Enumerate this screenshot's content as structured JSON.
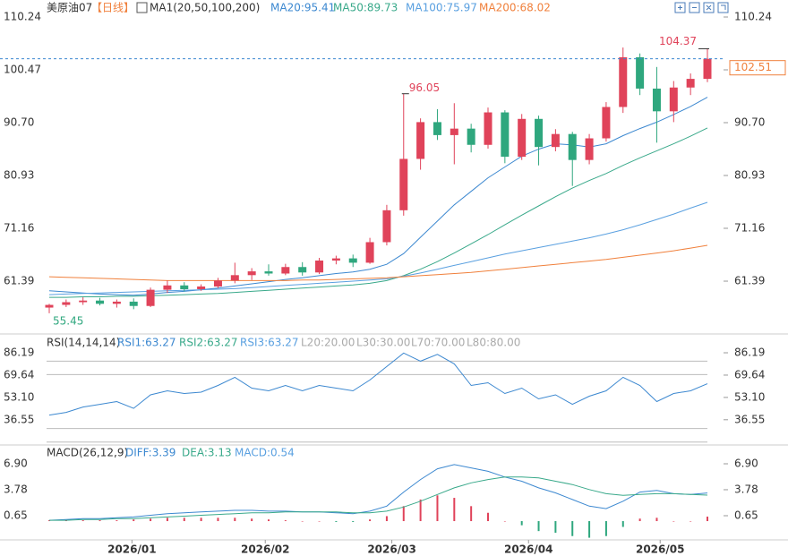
{
  "chart_data": {
    "type": "candlestick",
    "symbol": "美原油07",
    "period": "【日线】",
    "ma_title": "MA1(20,50,100,200)",
    "up_color": "#e0435a",
    "down_color": "#2fa77e",
    "ylim": [
      52.12,
      111.73
    ],
    "yticks": [
      110.24,
      100.47,
      {
        "value": 90.7,
        "label": "90.70"
      },
      80.93,
      71.16,
      61.39
    ],
    "month_ticks": [
      {
        "value": 4.9,
        "label": "2026/01"
      },
      {
        "value": 12.8,
        "label": "2026/02"
      },
      {
        "value": 20.3,
        "label": "2026/03"
      },
      {
        "value": 28.4,
        "label": "2026/04"
      },
      {
        "value": 36.2,
        "label": "2026/05"
      }
    ],
    "candles": [
      [
        56.5,
        57.2,
        55.45,
        57.0
      ],
      [
        57.0,
        58.0,
        56.6,
        57.5
      ],
      [
        57.5,
        58.4,
        57.0,
        57.8
      ],
      [
        57.8,
        58.3,
        56.9,
        57.2
      ],
      [
        57.2,
        58.0,
        56.5,
        57.6
      ],
      [
        57.6,
        58.2,
        56.2,
        56.8
      ],
      [
        56.8,
        60.2,
        56.6,
        59.8
      ],
      [
        59.8,
        61.5,
        59.2,
        60.6
      ],
      [
        60.6,
        61.2,
        59.5,
        59.9
      ],
      [
        59.9,
        60.8,
        59.6,
        60.4
      ],
      [
        60.4,
        62.0,
        60.1,
        61.5
      ],
      [
        61.5,
        64.8,
        61.0,
        62.5
      ],
      [
        62.5,
        63.8,
        61.6,
        63.2
      ],
      [
        63.2,
        64.5,
        62.4,
        62.8
      ],
      [
        62.8,
        64.6,
        62.5,
        64.0
      ],
      [
        64.0,
        64.9,
        62.4,
        63.0
      ],
      [
        63.0,
        65.7,
        62.7,
        65.2
      ],
      [
        65.2,
        66.1,
        64.5,
        65.6
      ],
      [
        65.6,
        66.3,
        64.0,
        64.8
      ],
      [
        64.8,
        69.4,
        64.6,
        68.6
      ],
      [
        68.6,
        75.5,
        68.0,
        74.5
      ],
      [
        74.5,
        96.05,
        73.5,
        84.0
      ],
      [
        84.0,
        91.5,
        82.0,
        90.8
      ],
      [
        90.8,
        93.2,
        87.5,
        88.4
      ],
      [
        88.4,
        94.3,
        83.0,
        89.6
      ],
      [
        89.6,
        90.5,
        85.2,
        86.6
      ],
      [
        86.6,
        93.5,
        85.9,
        92.6
      ],
      [
        92.6,
        93.0,
        83.2,
        84.4
      ],
      [
        84.4,
        92.3,
        83.8,
        91.4
      ],
      [
        91.4,
        92.0,
        82.8,
        86.2
      ],
      [
        86.2,
        89.5,
        85.4,
        88.6
      ],
      [
        88.6,
        89.0,
        79.0,
        83.8
      ],
      [
        83.8,
        88.6,
        83.0,
        87.8
      ],
      [
        87.8,
        94.5,
        87.2,
        93.6
      ],
      [
        93.6,
        104.6,
        92.5,
        102.8
      ],
      [
        102.8,
        103.5,
        95.8,
        97.0
      ],
      [
        97.0,
        101.0,
        87.0,
        92.8
      ],
      [
        92.8,
        98.4,
        90.8,
        97.2
      ],
      [
        97.2,
        99.8,
        95.8,
        98.8
      ],
      [
        98.8,
        104.37,
        98.2,
        102.51
      ]
    ],
    "series": [
      {
        "name": "MA20:95.41",
        "color": "#3c88d0",
        "values": [
          59.6,
          59.4,
          59.2,
          59.0,
          58.9,
          58.8,
          59.0,
          59.3,
          59.5,
          59.8,
          60.1,
          60.5,
          60.9,
          61.3,
          61.7,
          62.0,
          62.4,
          62.8,
          63.1,
          63.6,
          64.5,
          66.5,
          69.5,
          72.5,
          75.5,
          78.0,
          80.5,
          82.5,
          84.5,
          85.8,
          86.8,
          86.6,
          86.2,
          86.8,
          88.3,
          89.6,
          90.8,
          92.2,
          93.7,
          95.41
        ]
      },
      {
        "name": "MA50:89.73",
        "color": "#39a98a",
        "values": [
          58.4,
          58.4,
          58.5,
          58.5,
          58.6,
          58.6,
          58.7,
          58.8,
          58.9,
          59.0,
          59.1,
          59.3,
          59.5,
          59.7,
          59.9,
          60.1,
          60.3,
          60.5,
          60.7,
          61.0,
          61.5,
          62.4,
          63.6,
          65.0,
          66.6,
          68.3,
          70.0,
          71.8,
          73.6,
          75.3,
          77.0,
          78.6,
          80.0,
          81.3,
          82.8,
          84.2,
          85.5,
          86.8,
          88.2,
          89.73
        ]
      },
      {
        "name": "MA100:75.97",
        "color": "#5aa0e0",
        "values": [
          58.9,
          59.0,
          59.1,
          59.2,
          59.3,
          59.4,
          59.5,
          59.6,
          59.7,
          59.8,
          59.9,
          60.0,
          60.2,
          60.4,
          60.6,
          60.8,
          61.0,
          61.2,
          61.4,
          61.6,
          61.8,
          62.3,
          62.9,
          63.6,
          64.3,
          65.0,
          65.7,
          66.4,
          67.0,
          67.6,
          68.2,
          68.8,
          69.4,
          70.1,
          70.9,
          71.8,
          72.8,
          73.8,
          74.9,
          75.97
        ]
      },
      {
        "name": "MA200:68.02",
        "color": "#f0803c",
        "values": [
          62.2,
          62.1,
          62.0,
          61.9,
          61.8,
          61.7,
          61.6,
          61.5,
          61.5,
          61.5,
          61.5,
          61.5,
          61.5,
          61.5,
          61.5,
          61.6,
          61.6,
          61.7,
          61.8,
          61.9,
          62.0,
          62.2,
          62.4,
          62.6,
          62.8,
          63.0,
          63.3,
          63.6,
          63.9,
          64.2,
          64.5,
          64.8,
          65.1,
          65.4,
          65.8,
          66.2,
          66.6,
          67.0,
          67.5,
          68.02
        ]
      }
    ],
    "rsi": {
      "title": "RSI(14,14,14)",
      "legend": [
        {
          "name": "RSI1:63.27",
          "color": "#3c88d0"
        },
        {
          "name": "RSI2:63.27",
          "color": "#39a98a"
        },
        {
          "name": "RSI3:63.27",
          "color": "#5aa0e0"
        }
      ],
      "values": [
        40,
        42,
        46,
        48,
        50,
        45,
        55,
        58,
        56,
        57,
        62,
        68,
        60,
        58,
        62,
        58,
        62,
        60,
        58,
        66,
        76,
        86,
        80,
        85,
        78,
        62,
        64,
        56,
        60,
        52,
        55,
        48,
        54,
        58,
        68,
        62,
        50,
        56,
        58,
        63.27
      ],
      "levels": [
        {
          "value": 20,
          "label": "L20:20.00"
        },
        {
          "value": 30,
          "label": "L30:30.00"
        },
        {
          "value": 70,
          "label": "L70:70.00"
        },
        {
          "value": 80,
          "label": "L80:80.00"
        }
      ],
      "ylim": [
        18.5,
        95.5
      ],
      "yticks": [
        86.19,
        69.64,
        {
          "value": 53.1,
          "label": "53.10"
        },
        36.55
      ]
    },
    "macd": {
      "title": "MACD(26,12,9)",
      "series": [
        {
          "name": "DIFF:3.39",
          "color": "#3c88d0",
          "values": [
            0.1,
            0.2,
            0.3,
            0.3,
            0.4,
            0.5,
            0.7,
            0.9,
            1.0,
            1.1,
            1.2,
            1.3,
            1.3,
            1.2,
            1.2,
            1.1,
            1.1,
            1.0,
            0.9,
            1.2,
            1.8,
            3.5,
            5.0,
            6.3,
            6.8,
            6.4,
            6.0,
            5.3,
            4.8,
            4.0,
            3.4,
            2.6,
            1.8,
            1.5,
            2.4,
            3.5,
            3.7,
            3.3,
            3.2,
            3.39
          ]
        },
        {
          "name": "DEA:3.13",
          "color": "#39a98a",
          "values": [
            0.1,
            0.1,
            0.2,
            0.2,
            0.3,
            0.3,
            0.4,
            0.5,
            0.6,
            0.7,
            0.8,
            0.9,
            1.0,
            1.0,
            1.1,
            1.1,
            1.1,
            1.1,
            1.0,
            1.0,
            1.2,
            1.7,
            2.4,
            3.2,
            4.0,
            4.6,
            5.0,
            5.3,
            5.3,
            5.2,
            4.8,
            4.4,
            3.8,
            3.3,
            3.1,
            3.2,
            3.3,
            3.3,
            3.2,
            3.13
          ]
        }
      ],
      "histogram": {
        "name": "MACD:0.54",
        "color": "#5aa0e0",
        "values": [
          0.1,
          0.1,
          0.1,
          0.1,
          0.1,
          0.2,
          0.3,
          0.4,
          0.4,
          0.4,
          0.4,
          0.4,
          0.3,
          0.2,
          0.1,
          0.0,
          0.0,
          -0.1,
          -0.1,
          0.2,
          0.6,
          1.8,
          2.6,
          3.1,
          2.8,
          1.8,
          1.0,
          0.0,
          -0.5,
          -1.2,
          -1.4,
          -1.8,
          -2.0,
          -1.8,
          -0.7,
          0.3,
          0.4,
          0.0,
          0.0,
          0.54
        ]
      },
      "ylim": [
        -2.26,
        8.84
      ],
      "yticks": [
        {
          "value": 6.9,
          "label": "6.90"
        },
        3.78,
        0.65
      ]
    }
  }
}
